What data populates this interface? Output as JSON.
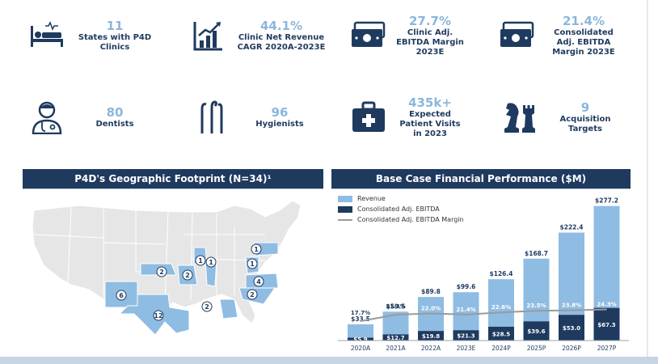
{
  "stats": [
    {
      "value": "11",
      "label": "States with P4D Clinics",
      "icon": "hospital-bed-icon"
    },
    {
      "value": "44.1%",
      "label": "Clinic Net Revenue CAGR 2020A-2023E",
      "icon": "growth-chart-icon"
    },
    {
      "value": "27.7%",
      "label": "Clinic Adj. EBITDA Margin 2023E",
      "icon": "cash-icon"
    },
    {
      "value": "21.4%",
      "label": "Consolidated Adj. EBITDA Margin 2023E",
      "icon": "cash-icon"
    },
    {
      "value": "80",
      "label": "Dentists",
      "icon": "dentist-icon"
    },
    {
      "value": "96",
      "label": "Hygienists",
      "icon": "dental-tools-icon"
    },
    {
      "value": "435k+",
      "label": "Expected Patient Visits in 2023",
      "icon": "medical-kit-icon"
    },
    {
      "value": "9",
      "label": "Acquisition Targets",
      "icon": "chess-pieces-icon"
    }
  ],
  "map_panel": {
    "title": "P4D's Geographic Footprint (N=34)¹",
    "state_counts": [
      "6",
      "12",
      "2",
      "2",
      "1",
      "1",
      "2",
      "1",
      "1",
      "4",
      "2"
    ]
  },
  "chart_panel": {
    "title": "Base Case Financial Performance ($M)"
  },
  "colors": {
    "navy": "#1f3a5f",
    "light_blue": "#8cb6dc",
    "revenue": "#8fbce3",
    "ebitda": "#1f3a5f",
    "margin_line": "#9a9a9a"
  },
  "chart_data": {
    "type": "bar",
    "title": "Base Case Financial Performance ($M)",
    "categories": [
      "2020A",
      "2021A",
      "2022A",
      "2023E",
      "2024P",
      "2025P",
      "2026P",
      "2027P"
    ],
    "series": [
      {
        "name": "Revenue",
        "type": "bar",
        "values": [
          33.5,
          59.5,
          89.8,
          99.6,
          126.4,
          168.7,
          222.4,
          277.2
        ],
        "labels": [
          "$33.5",
          "$59.5",
          "$89.8",
          "$99.6",
          "$126.4",
          "$168.7",
          "$222.4",
          "$277.2"
        ]
      },
      {
        "name": "Consolidated Adj. EBITDA",
        "type": "bar",
        "values": [
          5.9,
          12.7,
          19.8,
          21.3,
          28.5,
          39.6,
          53.0,
          67.3
        ],
        "labels": [
          "$5.9",
          "$12.7",
          "$19.8",
          "$21.3",
          "$28.5",
          "$39.6",
          "$53.0",
          "$67.3"
        ]
      },
      {
        "name": "Consolidated Adj. EBITDA Margin",
        "type": "line",
        "values": [
          17.7,
          21.3,
          22.0,
          21.4,
          22.6,
          23.5,
          23.8,
          24.3
        ],
        "labels": [
          "17.7%",
          "21.3%",
          "22.0%",
          "21.4%",
          "22.6%",
          "23.5%",
          "23.8%",
          "24.3%"
        ]
      }
    ],
    "legend_position": "top-left",
    "grid": false
  }
}
